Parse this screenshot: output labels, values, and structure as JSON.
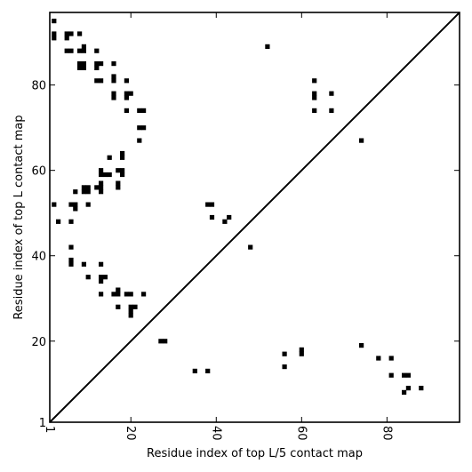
{
  "chart_data": {
    "type": "scatter",
    "xlabel": "Residue index of top L/5 contact map",
    "ylabel": "Residue index of top L contact map",
    "xlim": [
      1,
      97
    ],
    "ylim": [
      1,
      97
    ],
    "xticks": [
      1,
      20,
      40,
      60,
      80
    ],
    "yticks": [
      1,
      20,
      40,
      60,
      80
    ],
    "grid": false,
    "legend": "none",
    "marker": "square",
    "marker_color": "#000000",
    "diagonal": true,
    "upper_triangle_points": [
      [
        2,
        95
      ],
      [
        2,
        92
      ],
      [
        2,
        91
      ],
      [
        5,
        92
      ],
      [
        5,
        91
      ],
      [
        6,
        92
      ],
      [
        8,
        92
      ],
      [
        5,
        88
      ],
      [
        6,
        88
      ],
      [
        8,
        88
      ],
      [
        9,
        88
      ],
      [
        9,
        89
      ],
      [
        12,
        88
      ],
      [
        8,
        85
      ],
      [
        8,
        84
      ],
      [
        9,
        85
      ],
      [
        9,
        84
      ],
      [
        12,
        85
      ],
      [
        12,
        84
      ],
      [
        13,
        85
      ],
      [
        16,
        85
      ],
      [
        12,
        81
      ],
      [
        13,
        81
      ],
      [
        16,
        81
      ],
      [
        16,
        82
      ],
      [
        19,
        81
      ],
      [
        16,
        78
      ],
      [
        16,
        77
      ],
      [
        19,
        78
      ],
      [
        19,
        77
      ],
      [
        20,
        78
      ],
      [
        19,
        74
      ],
      [
        22,
        74
      ],
      [
        23,
        74
      ],
      [
        22,
        70
      ],
      [
        23,
        70
      ],
      [
        22,
        67
      ],
      [
        52,
        89
      ],
      [
        63,
        81
      ],
      [
        63,
        78
      ],
      [
        63,
        77
      ],
      [
        67,
        78
      ],
      [
        63,
        74
      ],
      [
        67,
        74
      ],
      [
        74,
        67
      ],
      [
        15,
        63
      ],
      [
        18,
        64
      ],
      [
        18,
        63
      ],
      [
        13,
        60
      ],
      [
        17,
        60
      ],
      [
        18,
        60
      ],
      [
        13,
        59
      ],
      [
        14,
        59
      ],
      [
        15,
        59
      ],
      [
        18,
        59
      ],
      [
        13,
        57
      ],
      [
        17,
        57
      ],
      [
        13,
        56
      ],
      [
        12,
        56
      ],
      [
        17,
        56
      ],
      [
        13,
        55
      ],
      [
        9,
        56
      ],
      [
        10,
        56
      ],
      [
        9,
        55
      ],
      [
        10,
        55
      ],
      [
        7,
        55
      ],
      [
        2,
        52
      ],
      [
        6,
        52
      ],
      [
        7,
        52
      ],
      [
        7,
        51
      ],
      [
        10,
        52
      ],
      [
        3,
        48
      ],
      [
        6,
        48
      ],
      [
        38,
        52
      ],
      [
        39,
        52
      ],
      [
        39,
        49
      ],
      [
        42,
        48
      ],
      [
        43,
        49
      ],
      [
        48,
        42
      ],
      [
        6,
        42
      ],
      [
        6,
        39
      ],
      [
        6,
        38
      ],
      [
        9,
        38
      ],
      [
        13,
        38
      ],
      [
        10,
        35
      ],
      [
        13,
        35
      ],
      [
        14,
        35
      ],
      [
        13,
        34
      ],
      [
        13,
        31
      ],
      [
        16,
        31
      ],
      [
        17,
        31
      ],
      [
        17,
        32
      ],
      [
        19,
        31
      ],
      [
        20,
        31
      ],
      [
        23,
        31
      ],
      [
        17,
        28
      ],
      [
        20,
        28
      ],
      [
        21,
        28
      ],
      [
        20,
        27
      ],
      [
        20,
        26
      ],
      [
        27,
        20
      ],
      [
        28,
        20
      ]
    ],
    "lower_triangle_points": [
      [
        35,
        13
      ],
      [
        38,
        13
      ],
      [
        56,
        17
      ],
      [
        56,
        14
      ],
      [
        60,
        18
      ],
      [
        60,
        17
      ],
      [
        74,
        19
      ],
      [
        78,
        16
      ],
      [
        81,
        16
      ],
      [
        81,
        12
      ],
      [
        84,
        12
      ],
      [
        85,
        12
      ],
      [
        84,
        8
      ],
      [
        85,
        9
      ],
      [
        88,
        9
      ]
    ]
  }
}
